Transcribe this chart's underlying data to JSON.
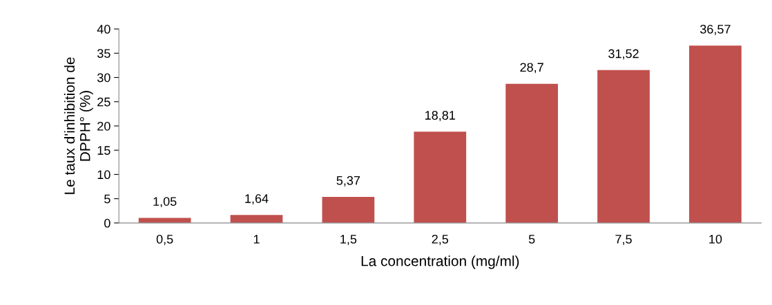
{
  "chart_data": {
    "type": "bar",
    "xlabel": "La concentration (mg/ml)",
    "ylabel": "Le taux d'inhibition de\nDPPH° (%)",
    "categories": [
      "0,5",
      "1",
      "1,5",
      "2,5",
      "5",
      "7,5",
      "10"
    ],
    "values": [
      1.05,
      1.64,
      5.37,
      18.81,
      28.7,
      31.52,
      36.57
    ],
    "value_labels": [
      "1,05",
      "1,64",
      "5,37",
      "18,81",
      "28,7",
      "31,52",
      "36,57"
    ],
    "color": "#c0504d",
    "ylim": [
      0,
      40
    ],
    "yticks": [
      0,
      5,
      10,
      15,
      20,
      25,
      30,
      35,
      40
    ],
    "grid": false,
    "legend": false
  }
}
